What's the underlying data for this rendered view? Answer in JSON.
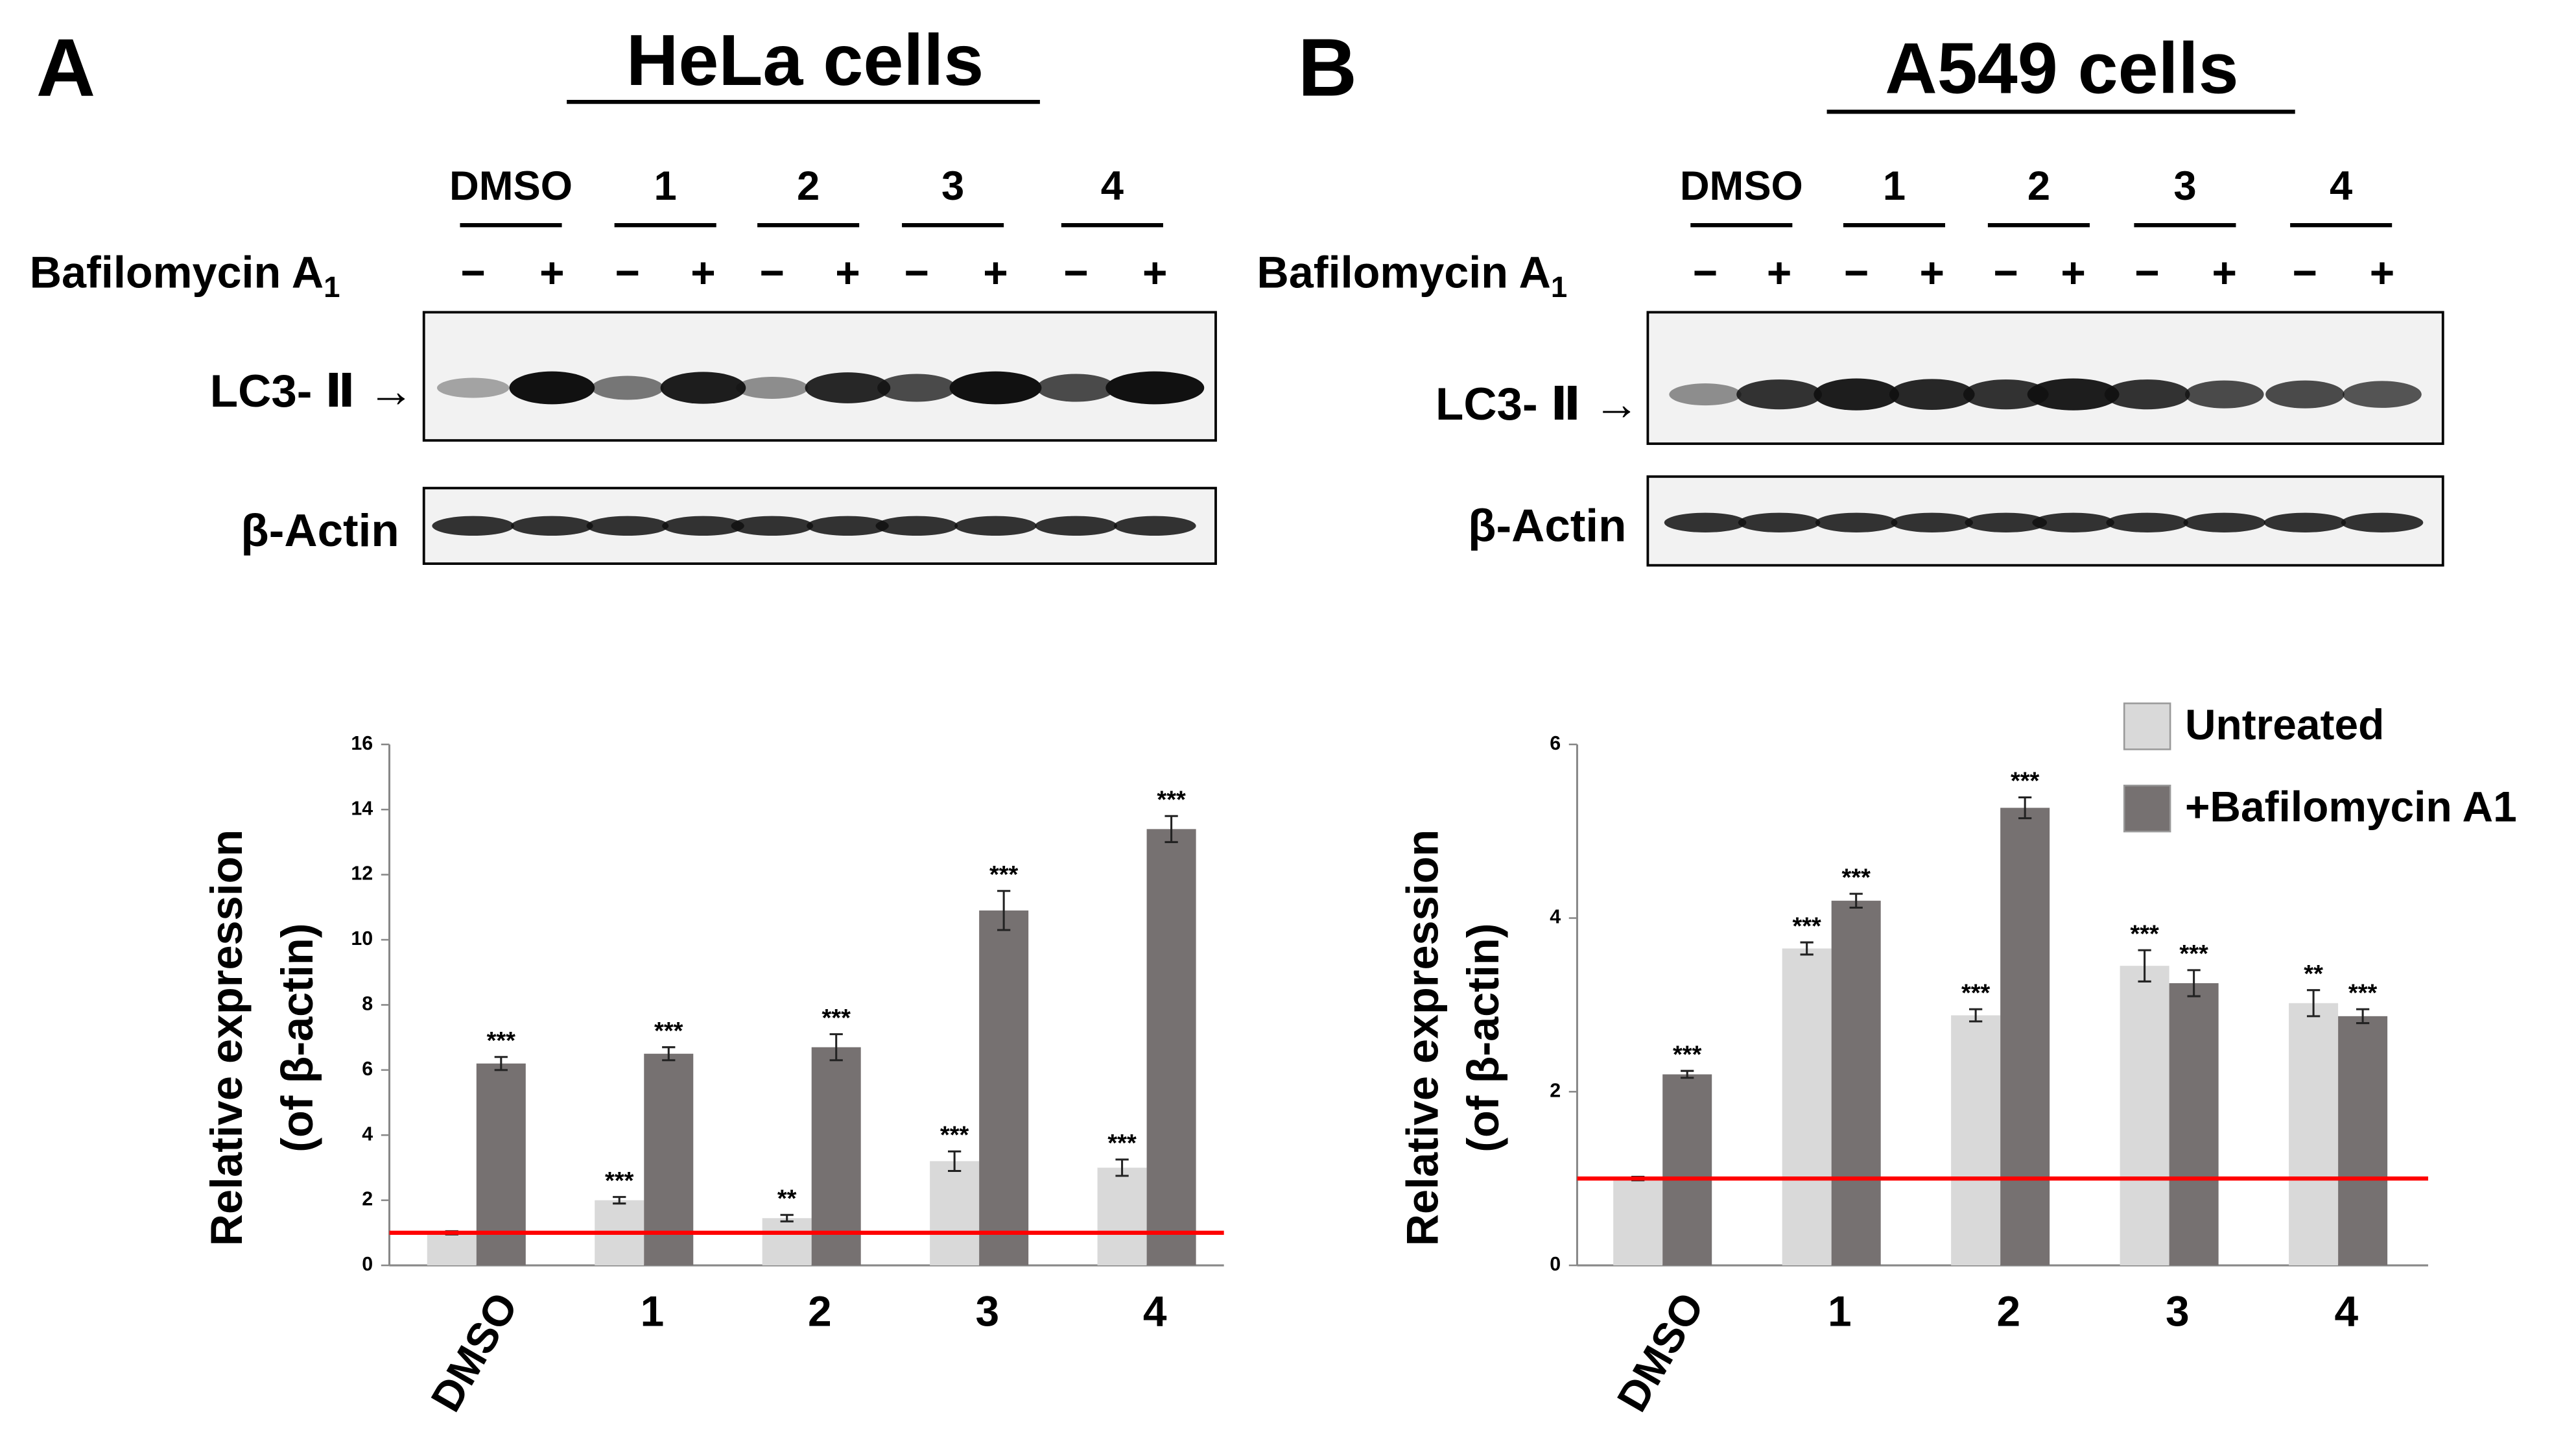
{
  "panels": [
    {
      "label": "A",
      "title": "HeLa cells",
      "lane_groups": [
        "DMSO",
        "1",
        "2",
        "3",
        "4"
      ],
      "treatment_label": "Bafilomycin A",
      "treatment_subscript": "1",
      "signs": [
        "−",
        "+"
      ],
      "bands": [
        "LC3- Ⅱ →",
        "β-Actin"
      ]
    },
    {
      "label": "B",
      "title": "A549 cells",
      "lane_groups": [
        "DMSO",
        "1",
        "2",
        "3",
        "4"
      ],
      "treatment_label": "Bafilomycin A",
      "treatment_subscript": "1",
      "signs": [
        "−",
        "+"
      ],
      "bands": [
        "LC3- Ⅱ →",
        "β-Actin"
      ]
    }
  ],
  "chart_data": [
    {
      "type": "bar",
      "y_label": [
        "Relative expression",
        "(of β-actin)"
      ],
      "categories": [
        "DMSO",
        "1",
        "2",
        "3",
        "4"
      ],
      "series": [
        {
          "color": "#d9d9d9",
          "values": [
            1.0,
            2.0,
            1.45,
            3.2,
            3.0
          ],
          "errors": [
            0.05,
            0.1,
            0.1,
            0.3,
            0.25
          ],
          "labels": [
            null,
            "***",
            "**",
            "***",
            "***"
          ]
        },
        {
          "color": "#767171",
          "values": [
            6.2,
            6.5,
            6.7,
            10.9,
            13.4
          ],
          "errors": [
            0.2,
            0.2,
            0.4,
            0.6,
            0.4
          ],
          "labels": [
            "***",
            "***",
            "***",
            "***",
            "***"
          ]
        }
      ],
      "ylim": [
        0,
        16
      ],
      "yticks": [
        0,
        2,
        4,
        6,
        8,
        10,
        12,
        14,
        16
      ],
      "reference_line": {
        "value": 1,
        "color": "#ff0000"
      },
      "legend": false
    },
    {
      "type": "bar",
      "y_label": [
        "Relative expression",
        "(of β-actin)"
      ],
      "categories": [
        "DMSO",
        "1",
        "2",
        "3",
        "4"
      ],
      "series": [
        {
          "name": "Untreated",
          "color": "#d9d9d9",
          "values": [
            1.0,
            3.65,
            2.88,
            3.45,
            3.02
          ],
          "errors": [
            0.02,
            0.07,
            0.07,
            0.18,
            0.15
          ],
          "labels": [
            null,
            "***",
            "***",
            "***",
            "**"
          ]
        },
        {
          "name": "+Bafilomycin A1",
          "color": "#767171",
          "values": [
            2.2,
            4.2,
            5.27,
            3.25,
            2.87
          ],
          "errors": [
            0.04,
            0.08,
            0.12,
            0.15,
            0.08
          ],
          "labels": [
            "***",
            "***",
            "***",
            "***",
            "***"
          ]
        }
      ],
      "ylim": [
        0,
        6
      ],
      "yticks": [
        0,
        2,
        4,
        6
      ],
      "reference_line": {
        "value": 1,
        "color": "#ff0000"
      },
      "legend": "upper right"
    }
  ]
}
